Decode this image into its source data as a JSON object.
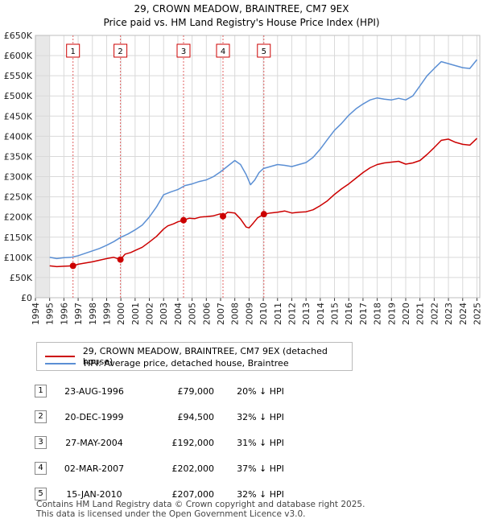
{
  "title_line1": "29, CROWN MEADOW, BRAINTREE, CM7 9EX",
  "title_line2": "Price paid vs. HM Land Registry's House Price Index (HPI)",
  "chart_data": {
    "type": "line",
    "title": "Price paid vs. HM Land Registry's House Price Index (HPI)",
    "xlabel": "",
    "ylabel": "",
    "xlim": [
      1994,
      2025.2
    ],
    "ylim": [
      0,
      650000
    ],
    "grid": true,
    "y_ticks": [
      0,
      50000,
      100000,
      150000,
      200000,
      250000,
      300000,
      350000,
      400000,
      450000,
      500000,
      550000,
      600000,
      650000
    ],
    "y_tick_labels": [
      "£0",
      "£50K",
      "£100K",
      "£150K",
      "£200K",
      "£250K",
      "£300K",
      "£350K",
      "£400K",
      "£450K",
      "£500K",
      "£550K",
      "£600K",
      "£650K"
    ],
    "x_ticks": [
      1994,
      1995,
      1996,
      1997,
      1998,
      1999,
      2000,
      2001,
      2002,
      2003,
      2004,
      2005,
      2006,
      2007,
      2008,
      2009,
      2010,
      2011,
      2012,
      2013,
      2014,
      2015,
      2016,
      2017,
      2018,
      2019,
      2020,
      2021,
      2022,
      2023,
      2024,
      2025
    ],
    "x_tick_labels": [
      "1994",
      "1995",
      "1996",
      "1997",
      "1998",
      "1999",
      "2000",
      "2001",
      "2002",
      "2003",
      "2004",
      "2005",
      "2006",
      "2007",
      "2008",
      "2009",
      "2010",
      "2011",
      "2012",
      "2013",
      "2014",
      "2015",
      "2016",
      "2017",
      "2018",
      "2019",
      "2020",
      "2021",
      "2022",
      "2023",
      "2024",
      "2025"
    ],
    "shaded_region": [
      1994,
      1995
    ],
    "series": [
      {
        "name": "29, CROWN MEADOW, BRAINTREE, CM7 9EX (detached house)",
        "color": "#cc0000",
        "x": [
          1995.0,
          1995.5,
          1996.0,
          1996.65,
          1997.0,
          1997.5,
          1998.0,
          1998.5,
          1999.0,
          1999.5,
          1999.97,
          2000.3,
          2000.7,
          2001.0,
          2001.5,
          2002.0,
          2002.5,
          2003.0,
          2003.3,
          2003.7,
          2004.0,
          2004.4,
          2004.8,
          2005.2,
          2005.6,
          2006.0,
          2006.5,
          2007.0,
          2007.17,
          2007.5,
          2008.0,
          2008.4,
          2008.8,
          2009.0,
          2009.3,
          2009.6,
          2010.04,
          2010.5,
          2011.0,
          2011.5,
          2012.0,
          2012.5,
          2013.0,
          2013.5,
          2014.0,
          2014.5,
          2015.0,
          2015.5,
          2016.0,
          2016.5,
          2017.0,
          2017.5,
          2018.0,
          2018.5,
          2019.0,
          2019.5,
          2020.0,
          2020.5,
          2021.0,
          2021.5,
          2022.0,
          2022.5,
          2023.0,
          2023.5,
          2024.0,
          2024.5,
          2025.0
        ],
        "values": [
          79000,
          77000,
          78000,
          79000,
          83000,
          86000,
          89000,
          93000,
          97000,
          100000,
          94500,
          108000,
          112000,
          117000,
          125000,
          138000,
          152000,
          170000,
          178000,
          183000,
          188000,
          192000,
          197000,
          196000,
          200000,
          201000,
          203000,
          208000,
          202000,
          212000,
          210000,
          195000,
          175000,
          173000,
          185000,
          198000,
          207000,
          210000,
          212000,
          215000,
          210000,
          212000,
          213000,
          218000,
          228000,
          240000,
          256000,
          270000,
          282000,
          296000,
          310000,
          322000,
          330000,
          334000,
          336000,
          338000,
          331000,
          334000,
          340000,
          355000,
          372000,
          390000,
          393000,
          385000,
          380000,
          378000,
          395000
        ]
      },
      {
        "name": "HPI: Average price, detached house, Braintree",
        "color": "#5b8fd4",
        "x": [
          1995.0,
          1995.5,
          1996.0,
          1996.5,
          1997.0,
          1997.5,
          1998.0,
          1998.5,
          1999.0,
          1999.5,
          2000.0,
          2000.5,
          2001.0,
          2001.5,
          2002.0,
          2002.5,
          2003.0,
          2003.5,
          2004.0,
          2004.5,
          2005.0,
          2005.5,
          2006.0,
          2006.5,
          2007.0,
          2007.5,
          2008.0,
          2008.4,
          2008.8,
          2009.1,
          2009.4,
          2009.7,
          2010.0,
          2010.5,
          2011.0,
          2011.5,
          2012.0,
          2012.5,
          2013.0,
          2013.5,
          2014.0,
          2014.5,
          2015.0,
          2015.5,
          2016.0,
          2016.5,
          2017.0,
          2017.5,
          2018.0,
          2018.5,
          2019.0,
          2019.5,
          2020.0,
          2020.5,
          2021.0,
          2021.5,
          2022.0,
          2022.5,
          2023.0,
          2023.5,
          2024.0,
          2024.5,
          2025.0
        ],
        "values": [
          100000,
          97000,
          99000,
          100000,
          104000,
          110000,
          116000,
          122000,
          130000,
          139000,
          150000,
          158000,
          168000,
          180000,
          200000,
          225000,
          255000,
          262000,
          268000,
          278000,
          282000,
          288000,
          292000,
          300000,
          312000,
          326000,
          340000,
          330000,
          305000,
          280000,
          292000,
          310000,
          320000,
          325000,
          330000,
          328000,
          325000,
          330000,
          335000,
          348000,
          368000,
          392000,
          415000,
          432000,
          452000,
          468000,
          480000,
          490000,
          495000,
          492000,
          490000,
          494000,
          490000,
          500000,
          525000,
          550000,
          568000,
          585000,
          580000,
          575000,
          570000,
          568000,
          590000
        ]
      }
    ],
    "sale_markers": [
      {
        "label": "1",
        "x": 1996.64,
        "value": 79000
      },
      {
        "label": "2",
        "x": 1999.97,
        "value": 94500
      },
      {
        "label": "3",
        "x": 2004.4,
        "value": 192000
      },
      {
        "label": "4",
        "x": 2007.17,
        "value": 202000
      },
      {
        "label": "5",
        "x": 2010.04,
        "value": 207000
      }
    ]
  },
  "legend": {
    "property_label": "29, CROWN MEADOW, BRAINTREE, CM7 9EX (detached house)",
    "hpi_label": "HPI: Average price, detached house, Braintree",
    "property_color": "#cc0000",
    "hpi_color": "#5b8fd4"
  },
  "sales": [
    {
      "num": "1",
      "date": "23-AUG-1996",
      "price": "£79,000",
      "hpi": "20% ↓ HPI"
    },
    {
      "num": "2",
      "date": "20-DEC-1999",
      "price": "£94,500",
      "hpi": "32% ↓ HPI"
    },
    {
      "num": "3",
      "date": "27-MAY-2004",
      "price": "£192,000",
      "hpi": "31% ↓ HPI"
    },
    {
      "num": "4",
      "date": "02-MAR-2007",
      "price": "£202,000",
      "hpi": "37% ↓ HPI"
    },
    {
      "num": "5",
      "date": "15-JAN-2010",
      "price": "£207,000",
      "hpi": "32% ↓ HPI"
    }
  ],
  "footer": {
    "line1": "Contains HM Land Registry data © Crown copyright and database right 2025.",
    "line2": "This data is licensed under the Open Government Licence v3.0."
  }
}
